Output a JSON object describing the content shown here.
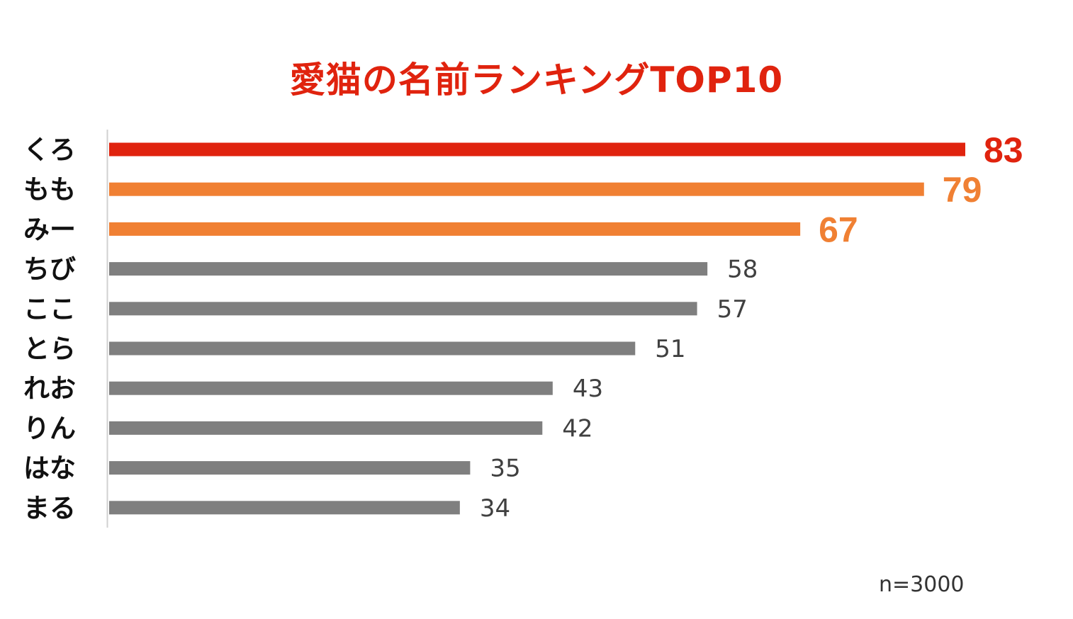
{
  "chart_data": {
    "type": "bar",
    "orientation": "horizontal",
    "title": "愛猫の名前ランキングTOP10",
    "categories": [
      "くろ",
      "もも",
      "みー",
      "ちび",
      "ここ",
      "とら",
      "れお",
      "りん",
      "はな",
      "まる"
    ],
    "values": [
      83,
      79,
      67,
      58,
      57,
      51,
      43,
      42,
      35,
      34
    ],
    "xlim": [
      0,
      83
    ],
    "grid": false,
    "legend": "none",
    "sample_note": "n=3000"
  },
  "colors": {
    "title": "#e0230e",
    "top1": "#e0230e",
    "top2_3": "#f08033",
    "others": "#7f7f7f",
    "others_label": "#404040",
    "category_label": "#111111",
    "axis": "#d0d0d0"
  }
}
